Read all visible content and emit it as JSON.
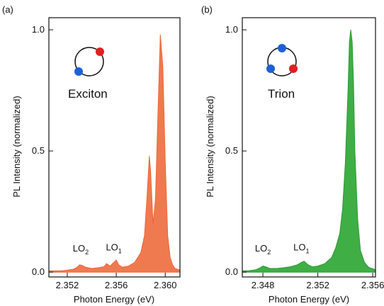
{
  "chart_data": [
    {
      "type": "area",
      "panel_label": "(a)",
      "inset_label": "Exciton",
      "xlabel": "Photon Energy (eV)",
      "ylabel": "PL Intensity (normalized)",
      "xlim": [
        2.3505,
        2.3612
      ],
      "ylim": [
        -0.02,
        1.05
      ],
      "xticks": [
        2.352,
        2.356,
        2.36
      ],
      "xtick_labels": [
        "2.352",
        "2.356",
        "2.360"
      ],
      "yticks": [
        0,
        0.5,
        1
      ],
      "ytick_labels": [
        "0.0",
        "0.5",
        "1.0"
      ],
      "fill_color": "#f07a4f",
      "stroke_color": "#e8673a",
      "annotations": [
        {
          "label": "LO",
          "sub": "2",
          "x": 2.3531,
          "y": 0.085
        },
        {
          "label": "LO",
          "sub": "1",
          "x": 2.3558,
          "y": 0.09
        }
      ],
      "series": [
        {
          "x": [
            2.3505,
            2.3515,
            2.352,
            2.3525,
            2.3528,
            2.353,
            2.3532,
            2.3535,
            2.354,
            2.3545,
            2.355,
            2.3552,
            2.3555,
            2.3558,
            2.356,
            2.3562,
            2.3565,
            2.357,
            2.3575,
            2.358,
            2.3583,
            2.3585,
            2.3587,
            2.3588,
            2.359,
            2.3592,
            2.3594,
            2.3596,
            2.3598,
            2.36,
            2.3602,
            2.3604,
            2.3606,
            2.3608,
            2.3612
          ],
          "y": [
            0.005,
            0.005,
            0.008,
            0.012,
            0.02,
            0.03,
            0.028,
            0.02,
            0.015,
            0.018,
            0.022,
            0.035,
            0.025,
            0.04,
            0.05,
            0.03,
            0.02,
            0.025,
            0.04,
            0.08,
            0.15,
            0.3,
            0.48,
            0.42,
            0.2,
            0.3,
            0.65,
            0.98,
            0.85,
            0.45,
            0.15,
            0.06,
            0.03,
            0.015,
            0.008
          ]
        }
      ]
    },
    {
      "type": "area",
      "panel_label": "(b)",
      "inset_label": "Trion",
      "xlabel": "Photon Energy (eV)",
      "ylabel": "PL Intensity (normalized)",
      "xlim": [
        2.3465,
        2.3562
      ],
      "ylim": [
        -0.02,
        1.05
      ],
      "xticks": [
        2.348,
        2.352,
        2.356
      ],
      "xtick_labels": [
        "2.348",
        "2.352",
        "2.356"
      ],
      "yticks": [
        0,
        0.5,
        1
      ],
      "ytick_labels": [
        "0.0",
        "0.5",
        "1.0"
      ],
      "fill_color": "#3fae45",
      "stroke_color": "#2e9a37",
      "annotations": [
        {
          "label": "LO",
          "sub": "2",
          "x": 2.348,
          "y": 0.085
        },
        {
          "label": "LO",
          "sub": "1",
          "x": 2.3508,
          "y": 0.09
        }
      ],
      "series": [
        {
          "x": [
            2.3465,
            2.347,
            2.3475,
            2.3478,
            2.348,
            2.3482,
            2.3485,
            2.349,
            2.3495,
            2.35,
            2.3505,
            2.3508,
            2.351,
            2.3513,
            2.3516,
            2.352,
            2.3525,
            2.353,
            2.3533,
            2.3536,
            2.3538,
            2.354,
            2.3542,
            2.3543,
            2.3544,
            2.3545,
            2.3546,
            2.3547,
            2.3549,
            2.3551,
            2.3554,
            2.3557,
            2.3562
          ],
          "y": [
            0.005,
            0.006,
            0.01,
            0.018,
            0.025,
            0.022,
            0.015,
            0.015,
            0.018,
            0.022,
            0.03,
            0.04,
            0.045,
            0.03,
            0.022,
            0.025,
            0.035,
            0.06,
            0.1,
            0.16,
            0.26,
            0.45,
            0.75,
            0.95,
            1.0,
            0.95,
            0.78,
            0.5,
            0.22,
            0.09,
            0.04,
            0.02,
            0.01
          ]
        }
      ]
    }
  ]
}
